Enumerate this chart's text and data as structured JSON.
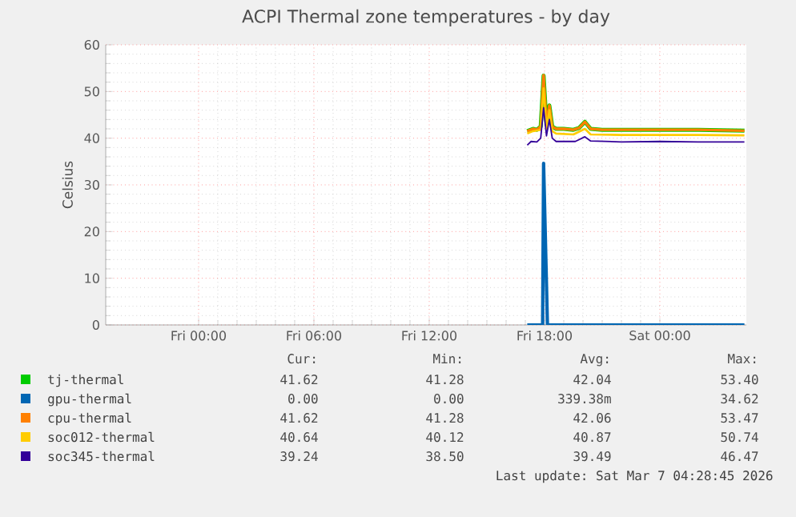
{
  "chart_data": {
    "type": "line",
    "title": "ACPI Thermal zone temperatures - by day",
    "ylabel": "Celsius",
    "xlim": [
      "2026-03-05T19:10",
      "2026-03-07T04:30"
    ],
    "xticks": [
      {
        "value": "2026-03-06T00:00",
        "label": "Fri 00:00"
      },
      {
        "value": "2026-03-06T06:00",
        "label": "Fri 06:00"
      },
      {
        "value": "2026-03-06T12:00",
        "label": "Fri 12:00"
      },
      {
        "value": "2026-03-06T18:00",
        "label": "Fri 18:00"
      },
      {
        "value": "2026-03-07T00:00",
        "label": "Sat 00:00"
      }
    ],
    "ylim": [
      0,
      60
    ],
    "yticks": [
      0,
      10,
      20,
      30,
      40,
      50,
      60
    ],
    "grid": true,
    "legend": "bottom",
    "marker": "none",
    "line_style": "solid",
    "series": [
      {
        "name": "tj-thermal",
        "color": "#00cc00",
        "x": [
          "2026-03-06T17:06",
          "2026-03-06T17:24",
          "2026-03-06T17:36",
          "2026-03-06T17:48",
          "2026-03-06T17:57",
          "2026-03-06T18:06",
          "2026-03-06T18:15",
          "2026-03-06T18:24",
          "2026-03-06T18:36",
          "2026-03-06T19:00",
          "2026-03-06T19:30",
          "2026-03-06T19:48",
          "2026-03-06T20:06",
          "2026-03-06T20:24",
          "2026-03-06T21:00",
          "2026-03-07T00:00",
          "2026-03-07T02:00",
          "2026-03-07T04:24"
        ],
        "values": [
          41.5,
          42,
          41.8,
          42.5,
          53.4,
          43,
          47,
          42.5,
          42,
          42,
          41.8,
          42.2,
          43.5,
          42,
          41.8,
          41.8,
          41.8,
          41.6
        ]
      },
      {
        "name": "gpu-thermal",
        "color": "#0066b3",
        "x": [
          "2026-03-06T17:06",
          "2026-03-06T17:54",
          "2026-03-06T17:57",
          "2026-03-06T18:09",
          "2026-03-07T04:24"
        ],
        "values": [
          0,
          0,
          34.6,
          0,
          0
        ]
      },
      {
        "name": "cpu-thermal",
        "color": "#ff8000",
        "x": [
          "2026-03-06T17:06",
          "2026-03-06T17:24",
          "2026-03-06T17:36",
          "2026-03-06T17:48",
          "2026-03-06T17:57",
          "2026-03-06T18:06",
          "2026-03-06T18:15",
          "2026-03-06T18:24",
          "2026-03-06T18:36",
          "2026-03-06T19:00",
          "2026-03-06T19:30",
          "2026-03-06T19:48",
          "2026-03-06T20:06",
          "2026-03-06T20:24",
          "2026-03-06T21:00",
          "2026-03-07T00:00",
          "2026-03-07T02:00",
          "2026-03-07T04:24"
        ],
        "values": [
          41.5,
          42,
          41.8,
          42.5,
          53.5,
          43,
          47,
          42.5,
          42,
          42,
          41.8,
          42.2,
          43.5,
          42,
          41.8,
          41.8,
          41.8,
          41.6
        ]
      },
      {
        "name": "soc012-thermal",
        "color": "#ffcc00",
        "x": [
          "2026-03-06T17:06",
          "2026-03-06T17:24",
          "2026-03-06T17:48",
          "2026-03-06T17:57",
          "2026-03-06T18:06",
          "2026-03-06T18:15",
          "2026-03-06T18:24",
          "2026-03-06T18:36",
          "2026-03-06T19:30",
          "2026-03-06T20:06",
          "2026-03-06T20:24",
          "2026-03-06T22:00",
          "2026-03-07T00:00",
          "2026-03-07T02:00",
          "2026-03-07T04:24"
        ],
        "values": [
          41,
          41.5,
          41.8,
          50.7,
          42,
          46,
          41.5,
          41,
          40.8,
          42,
          40.8,
          40.7,
          40.7,
          40.7,
          40.6
        ]
      },
      {
        "name": "soc345-thermal",
        "color": "#330099",
        "x": [
          "2026-03-06T17:06",
          "2026-03-06T17:18",
          "2026-03-06T17:36",
          "2026-03-06T17:48",
          "2026-03-06T17:57",
          "2026-03-06T18:06",
          "2026-03-06T18:15",
          "2026-03-06T18:24",
          "2026-03-06T18:36",
          "2026-03-06T19:00",
          "2026-03-06T19:36",
          "2026-03-06T20:06",
          "2026-03-06T20:24",
          "2026-03-06T22:00",
          "2026-03-07T00:00",
          "2026-03-07T02:00",
          "2026-03-07T04:24"
        ],
        "values": [
          38.5,
          39.3,
          39.2,
          40,
          46.5,
          40.5,
          44,
          40,
          39.3,
          39.3,
          39.3,
          40.3,
          39.4,
          39.2,
          39.3,
          39.2,
          39.2
        ]
      }
    ],
    "annotations": [
      "Cur:",
      "Min:",
      "Avg:",
      "Max:",
      "41.62",
      "41.28",
      "42.04",
      "53.40",
      "0.00",
      "0.00",
      "339.38m",
      "34.62",
      "41.62",
      "41.28",
      "42.06",
      "53.47",
      "40.64",
      "40.12",
      "40.87",
      "50.74",
      "39.24",
      "38.50",
      "39.49",
      "46.47",
      "Last update: Sat Mar  7 04:28:45 2026"
    ]
  }
}
